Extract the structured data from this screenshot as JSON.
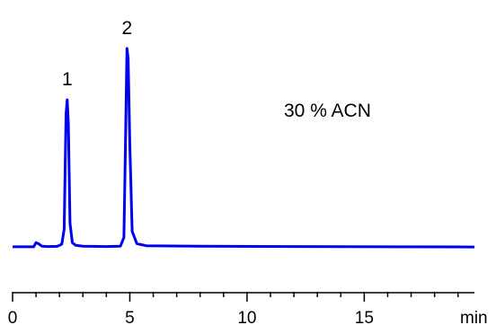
{
  "chart_data": {
    "type": "line",
    "title": "",
    "xlabel": "",
    "ylabel": "",
    "x_unit": "min",
    "xlim": [
      0,
      19.7
    ],
    "ylim": [
      0,
      1
    ],
    "xticks": [
      0,
      5,
      10,
      15
    ],
    "grid": false,
    "legend": "none",
    "series": [
      {
        "color": "#0000ee",
        "points": [
          [
            0,
            0.005
          ],
          [
            0.9,
            0.005
          ],
          [
            1.0,
            0.025
          ],
          [
            1.1,
            0.02
          ],
          [
            1.25,
            0.008
          ],
          [
            1.5,
            0.006
          ],
          [
            1.9,
            0.007
          ],
          [
            2.0,
            0.012
          ],
          [
            2.1,
            0.018
          ],
          [
            2.2,
            0.09
          ],
          [
            2.28,
            0.65
          ],
          [
            2.33,
            0.72
          ],
          [
            2.38,
            0.6
          ],
          [
            2.45,
            0.12
          ],
          [
            2.55,
            0.025
          ],
          [
            2.7,
            0.012
          ],
          [
            3.0,
            0.008
          ],
          [
            4.0,
            0.006
          ],
          [
            4.6,
            0.008
          ],
          [
            4.75,
            0.05
          ],
          [
            4.82,
            0.55
          ],
          [
            4.88,
            0.97
          ],
          [
            4.93,
            0.92
          ],
          [
            5.0,
            0.5
          ],
          [
            5.1,
            0.08
          ],
          [
            5.3,
            0.02
          ],
          [
            5.7,
            0.01
          ],
          [
            8.0,
            0.008
          ],
          [
            12.0,
            0.006
          ],
          [
            16.0,
            0.005
          ],
          [
            19.7,
            0.004
          ]
        ]
      }
    ],
    "peaks": [
      {
        "label": "1",
        "x": 2.33,
        "y": 0.72
      },
      {
        "label": "2",
        "x": 4.88,
        "y": 0.97
      }
    ],
    "annotation": "30 % ACN"
  }
}
